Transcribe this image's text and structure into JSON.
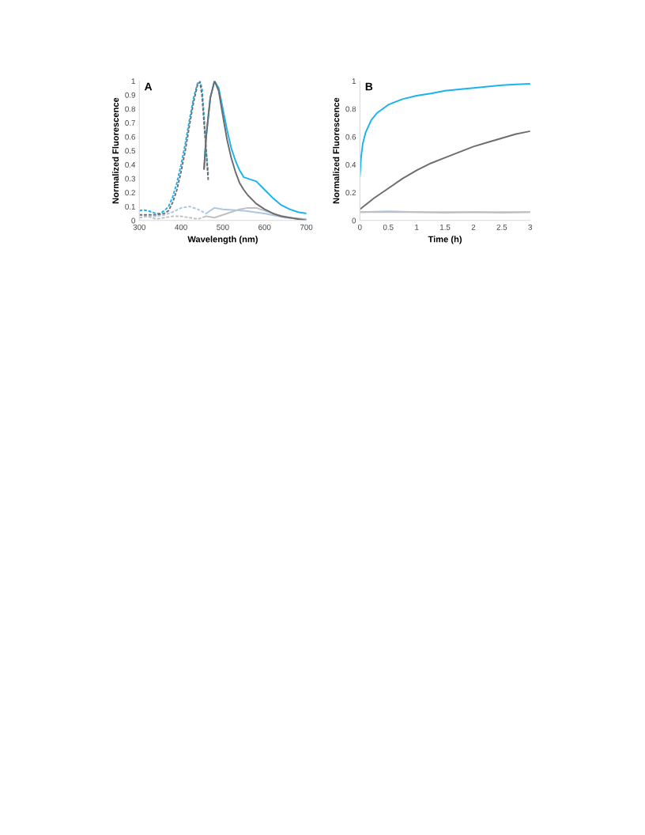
{
  "chart_data": [
    {
      "type": "line",
      "annotations": [
        "A"
      ],
      "xlabel": "Wavelength (nm)",
      "ylabel": "Normalized Fluorescence",
      "xlim": [
        300,
        700
      ],
      "ylim": [
        0,
        1
      ],
      "xticks": [
        300,
        400,
        500,
        600,
        700
      ],
      "yticks": [
        0,
        0.1,
        0.2,
        0.3,
        0.4,
        0.5,
        0.6,
        0.7,
        0.8,
        0.9,
        1
      ],
      "grid": false,
      "legend": false,
      "series": [
        {
          "color": "#1ab2f0",
          "line_style": "dashed",
          "x": [
            300,
            310,
            320,
            340,
            350,
            360,
            370,
            380,
            390,
            400,
            410,
            420,
            430,
            440,
            445,
            450,
            455,
            460,
            465
          ],
          "values": [
            0.07,
            0.075,
            0.07,
            0.05,
            0.05,
            0.07,
            0.1,
            0.17,
            0.27,
            0.4,
            0.55,
            0.72,
            0.88,
            0.99,
            1.0,
            0.95,
            0.75,
            0.5,
            0.33
          ]
        },
        {
          "color": "#6d6d6d",
          "line_style": "dashed",
          "x": [
            300,
            320,
            340,
            360,
            370,
            380,
            390,
            400,
            410,
            420,
            430,
            440,
            445,
            450,
            455,
            460,
            465
          ],
          "values": [
            0.04,
            0.04,
            0.04,
            0.05,
            0.07,
            0.13,
            0.22,
            0.35,
            0.5,
            0.68,
            0.85,
            0.98,
            0.99,
            0.9,
            0.7,
            0.5,
            0.29
          ]
        },
        {
          "color": "#1ab2f0",
          "line_style": "solid",
          "x": [
            455,
            460,
            470,
            480,
            490,
            500,
            510,
            520,
            530,
            540,
            550,
            560,
            580,
            600,
            620,
            640,
            660,
            680,
            700
          ],
          "values": [
            0.37,
            0.6,
            0.88,
            1.0,
            0.95,
            0.8,
            0.65,
            0.52,
            0.43,
            0.36,
            0.31,
            0.3,
            0.28,
            0.22,
            0.16,
            0.11,
            0.08,
            0.06,
            0.05
          ]
        },
        {
          "color": "#a9c8e6",
          "line_style": "dashed",
          "x": [
            300,
            320,
            340,
            360,
            380,
            400,
            420,
            440,
            460
          ],
          "values": [
            0.02,
            0.03,
            0.03,
            0.04,
            0.06,
            0.09,
            0.1,
            0.08,
            0.05
          ]
        },
        {
          "color": "#c0c0c0",
          "line_style": "dashed",
          "x": [
            300,
            320,
            340,
            360,
            380,
            400,
            420,
            440,
            460
          ],
          "values": [
            0.02,
            0.03,
            0.01,
            0.02,
            0.03,
            0.03,
            0.02,
            0.01,
            0.03
          ]
        },
        {
          "color": "#a9c8e6",
          "line_style": "solid",
          "x": [
            460,
            480,
            500,
            550,
            600,
            650,
            700
          ],
          "values": [
            0.05,
            0.09,
            0.08,
            0.07,
            0.05,
            0.02,
            0.01
          ]
        },
        {
          "color": "#c0c0c0",
          "line_style": "solid",
          "x": [
            460,
            480,
            500,
            520,
            540,
            560,
            580,
            600,
            630,
            660,
            700
          ],
          "values": [
            0.03,
            0.02,
            0.04,
            0.06,
            0.08,
            0.09,
            0.09,
            0.07,
            0.04,
            0.02,
            0.0
          ]
        },
        {
          "color": "#6d6d6d",
          "line_style": "solid",
          "x": [
            455,
            460,
            470,
            480,
            490,
            500,
            510,
            520,
            530,
            540,
            550,
            560,
            580,
            600,
            620,
            640,
            660,
            680,
            700
          ],
          "values": [
            0.37,
            0.6,
            0.88,
            1.0,
            0.93,
            0.75,
            0.58,
            0.45,
            0.35,
            0.27,
            0.22,
            0.18,
            0.12,
            0.08,
            0.05,
            0.03,
            0.02,
            0.01,
            0.0
          ]
        }
      ]
    },
    {
      "type": "line",
      "annotations": [
        "B"
      ],
      "xlabel": "Time (h)",
      "ylabel": "Normalized Fluorescence",
      "xlim": [
        0,
        3
      ],
      "ylim": [
        0,
        1
      ],
      "xticks": [
        0,
        0.5,
        1,
        1.5,
        2,
        2.5,
        3
      ],
      "yticks": [
        0,
        0.2,
        0.4,
        0.6,
        0.8,
        1
      ],
      "grid": false,
      "legend": false,
      "series": [
        {
          "color": "#a9c8e6",
          "line_style": "solid",
          "x": [
            0,
            0.5,
            1,
            1.5,
            2,
            2.5,
            3
          ],
          "values": [
            0.06,
            0.065,
            0.06,
            0.06,
            0.06,
            0.06,
            0.06
          ]
        },
        {
          "color": "#c0c0c0",
          "line_style": "solid",
          "x": [
            0,
            0.5,
            1,
            1.5,
            2,
            2.5,
            3
          ],
          "values": [
            0.06,
            0.06,
            0.06,
            0.055,
            0.06,
            0.055,
            0.06
          ]
        },
        {
          "color": "#6d6d6d",
          "line_style": "solid",
          "x": [
            0,
            0.25,
            0.5,
            0.75,
            1,
            1.25,
            1.5,
            1.75,
            2,
            2.25,
            2.5,
            2.75,
            3
          ],
          "values": [
            0.08,
            0.16,
            0.23,
            0.3,
            0.36,
            0.41,
            0.45,
            0.49,
            0.53,
            0.56,
            0.59,
            0.62,
            0.64
          ]
        },
        {
          "color": "#1ab2f0",
          "line_style": "solid",
          "x": [
            0,
            0.02,
            0.05,
            0.1,
            0.2,
            0.3,
            0.4,
            0.5,
            0.75,
            1,
            1.25,
            1.5,
            1.75,
            2,
            2.25,
            2.5,
            2.75,
            3
          ],
          "values": [
            0.32,
            0.45,
            0.55,
            0.63,
            0.72,
            0.77,
            0.8,
            0.83,
            0.87,
            0.895,
            0.91,
            0.93,
            0.94,
            0.95,
            0.96,
            0.97,
            0.975,
            0.98
          ]
        }
      ]
    }
  ]
}
